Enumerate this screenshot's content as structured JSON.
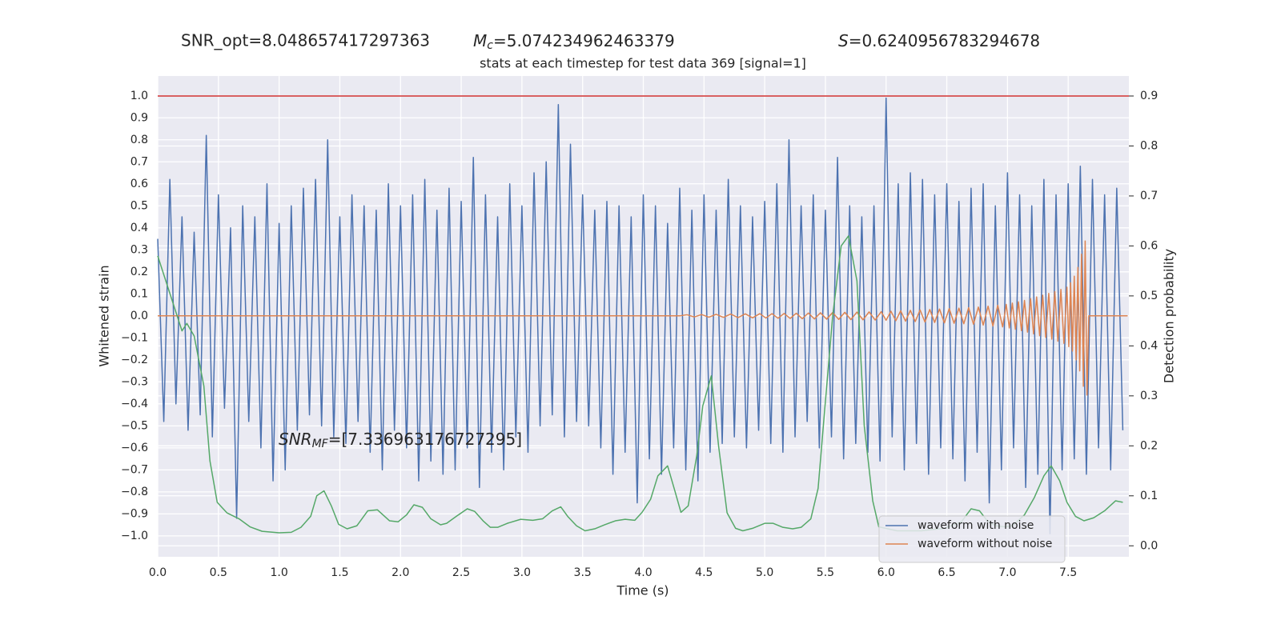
{
  "chart_data": {
    "type": "line",
    "title": "stats at each timestep for test data 369 [signal=1]",
    "annotations": [
      {
        "text": "SNR_opt=8.048657417297363"
      },
      {
        "symbol": "M",
        "subscript": "c",
        "text": "=5.074234962463379"
      },
      {
        "symbol": "S",
        "text": "=0.6240956783294678"
      },
      {
        "symbol": "SNR",
        "subscript": "MF",
        "text": "=[7.336963176727295]"
      }
    ],
    "x_label": "Time (s)",
    "y_label": "Whitened strain",
    "y2_label": "Detection probability",
    "xlim": [
      0,
      8
    ],
    "ylim": [
      -1.095,
      1.09
    ],
    "y2lim": [
      -0.022,
      0.94
    ],
    "xticks": [
      {
        "value": 0,
        "label": "0.0"
      },
      {
        "value": 0.5,
        "label": "0.5"
      },
      {
        "value": 1,
        "label": "1.0"
      },
      {
        "value": 1.5,
        "label": "1.5"
      },
      {
        "value": 2,
        "label": "2.0"
      },
      {
        "value": 2.5,
        "label": "2.5"
      },
      {
        "value": 3,
        "label": "3.0"
      },
      {
        "value": 3.5,
        "label": "3.5"
      },
      {
        "value": 4,
        "label": "4.0"
      },
      {
        "value": 4.5,
        "label": "4.5"
      },
      {
        "value": 5,
        "label": "5.0"
      },
      {
        "value": 5.5,
        "label": "5.5"
      },
      {
        "value": 6,
        "label": "6.0"
      },
      {
        "value": 6.5,
        "label": "6.5"
      },
      {
        "value": 7,
        "label": "7.0"
      },
      {
        "value": 7.5,
        "label": "7.5"
      }
    ],
    "yticks": [
      {
        "value": -1,
        "label": "−1.0"
      },
      {
        "value": -0.9,
        "label": "−0.9"
      },
      {
        "value": -0.8,
        "label": "−0.8"
      },
      {
        "value": -0.7,
        "label": "−0.7"
      },
      {
        "value": -0.6,
        "label": "−0.6"
      },
      {
        "value": -0.5,
        "label": "−0.5"
      },
      {
        "value": -0.4,
        "label": "−0.4"
      },
      {
        "value": -0.3,
        "label": "−0.3"
      },
      {
        "value": -0.2,
        "label": "−0.2"
      },
      {
        "value": -0.1,
        "label": "−0.1"
      },
      {
        "value": 0,
        "label": "0.0"
      },
      {
        "value": 0.1,
        "label": "0.1"
      },
      {
        "value": 0.2,
        "label": "0.2"
      },
      {
        "value": 0.3,
        "label": "0.3"
      },
      {
        "value": 0.4,
        "label": "0.4"
      },
      {
        "value": 0.5,
        "label": "0.5"
      },
      {
        "value": 0.6,
        "label": "0.6"
      },
      {
        "value": 0.7,
        "label": "0.7"
      },
      {
        "value": 0.8,
        "label": "0.8"
      },
      {
        "value": 0.9,
        "label": "0.9"
      },
      {
        "value": 1,
        "label": "1.0"
      }
    ],
    "y2ticks": [
      {
        "value": 0,
        "label": "0.0"
      },
      {
        "value": 0.1,
        "label": "0.1"
      },
      {
        "value": 0.2,
        "label": "0.2"
      },
      {
        "value": 0.3,
        "label": "0.3"
      },
      {
        "value": 0.4,
        "label": "0.4"
      },
      {
        "value": 0.5,
        "label": "0.5"
      },
      {
        "value": 0.6,
        "label": "0.6"
      },
      {
        "value": 0.7,
        "label": "0.7"
      },
      {
        "value": 0.8,
        "label": "0.8"
      },
      {
        "value": 0.9,
        "label": "0.9"
      }
    ],
    "grid": true,
    "legend": "lower right",
    "hlines": [
      {
        "value": 0.9,
        "axis": "y2",
        "color": "#d03030"
      }
    ],
    "series": [
      {
        "name": "waveform with noise",
        "color": "#4c72b0",
        "x": [
          0,
          0.05,
          0.1,
          0.15,
          0.2,
          0.25,
          0.3,
          0.35,
          0.4,
          0.45,
          0.5,
          0.55,
          0.6,
          0.65,
          0.7,
          0.75,
          0.8,
          0.85,
          0.9,
          0.95,
          1,
          1.05,
          1.1,
          1.15,
          1.2,
          1.25,
          1.3,
          1.35,
          1.4,
          1.45,
          1.5,
          1.55,
          1.6,
          1.65,
          1.7,
          1.75,
          1.8,
          1.85,
          1.9,
          1.95,
          2,
          2.05,
          2.1,
          2.15,
          2.2,
          2.25,
          2.3,
          2.35,
          2.4,
          2.45,
          2.5,
          2.55,
          2.6,
          2.65,
          2.7,
          2.75,
          2.8,
          2.85,
          2.9,
          2.95,
          3,
          3.05,
          3.1,
          3.15,
          3.2,
          3.25,
          3.3,
          3.35,
          3.4,
          3.45,
          3.5,
          3.55,
          3.6,
          3.65,
          3.7,
          3.75,
          3.8,
          3.85,
          3.9,
          3.95,
          4,
          4.05,
          4.1,
          4.15,
          4.2,
          4.25,
          4.3,
          4.35,
          4.4,
          4.45,
          4.5,
          4.55,
          4.6,
          4.65,
          4.7,
          4.75,
          4.8,
          4.85,
          4.9,
          4.95,
          5,
          5.05,
          5.1,
          5.15,
          5.2,
          5.25,
          5.3,
          5.35,
          5.4,
          5.45,
          5.5,
          5.55,
          5.6,
          5.65,
          5.7,
          5.75,
          5.8,
          5.85,
          5.9,
          5.95,
          6,
          6.05,
          6.1,
          6.15,
          6.2,
          6.25,
          6.3,
          6.35,
          6.4,
          6.45,
          6.5,
          6.55,
          6.6,
          6.65,
          6.7,
          6.75,
          6.8,
          6.85,
          6.9,
          6.95,
          7,
          7.05,
          7.1,
          7.15,
          7.2,
          7.25,
          7.3,
          7.35,
          7.4,
          7.45,
          7.5,
          7.55,
          7.6,
          7.65,
          7.7,
          7.75,
          7.8,
          7.85,
          7.9,
          7.95
        ],
        "values": [
          0.35,
          -0.48,
          0.62,
          -0.4,
          0.45,
          -0.52,
          0.38,
          -0.45,
          0.82,
          -0.55,
          0.55,
          -0.42,
          0.4,
          -0.92,
          0.5,
          -0.48,
          0.45,
          -0.6,
          0.6,
          -0.75,
          0.42,
          -0.7,
          0.5,
          -0.52,
          0.58,
          -0.45,
          0.62,
          -0.5,
          0.8,
          -0.55,
          0.45,
          -0.58,
          0.55,
          -0.48,
          0.5,
          -0.62,
          0.48,
          -0.7,
          0.6,
          -0.52,
          0.5,
          -0.6,
          0.55,
          -0.75,
          0.62,
          -0.66,
          0.48,
          -0.72,
          0.58,
          -0.7,
          0.52,
          -0.6,
          0.72,
          -0.78,
          0.55,
          -0.62,
          0.45,
          -0.7,
          0.6,
          -0.55,
          0.5,
          -0.62,
          0.65,
          -0.5,
          0.7,
          -0.45,
          0.96,
          -0.55,
          0.78,
          -0.48,
          0.55,
          -0.5,
          0.48,
          -0.6,
          0.52,
          -0.72,
          0.5,
          -0.62,
          0.45,
          -0.85,
          0.55,
          -0.65,
          0.5,
          -0.72,
          0.42,
          -0.6,
          0.58,
          -0.7,
          0.48,
          -0.75,
          0.55,
          -0.62,
          0.48,
          -0.58,
          0.62,
          -0.55,
          0.5,
          -0.6,
          0.45,
          -0.52,
          0.52,
          -0.58,
          0.6,
          -0.62,
          0.8,
          -0.55,
          0.5,
          -0.48,
          0.55,
          -0.6,
          0.48,
          -0.55,
          0.72,
          -0.65,
          0.5,
          -0.58,
          0.45,
          -0.62,
          0.5,
          -0.66,
          0.99,
          -0.55,
          0.6,
          -0.7,
          0.65,
          -0.58,
          0.62,
          -0.72,
          0.55,
          -0.6,
          0.6,
          -0.65,
          0.52,
          -0.75,
          0.58,
          -0.62,
          0.6,
          -0.85,
          0.5,
          -0.7,
          0.65,
          -0.6,
          0.55,
          -0.78,
          0.5,
          -0.72,
          0.62,
          -0.99,
          0.55,
          -0.7,
          0.6,
          -0.65,
          0.68,
          -0.72,
          0.62,
          -0.6,
          0.55,
          -0.7,
          0.58,
          -0.52
        ]
      },
      {
        "name": "waveform without noise",
        "color": "#dd8452",
        "x": [
          0,
          4.3,
          4.36,
          4.42,
          4.48,
          4.54,
          4.6,
          4.66,
          4.72,
          4.78,
          4.84,
          4.9,
          4.96,
          5.01,
          5.06,
          5.11,
          5.16,
          5.21,
          5.26,
          5.31,
          5.36,
          5.41,
          5.46,
          5.51,
          5.56,
          5.61,
          5.66,
          5.71,
          5.76,
          5.81,
          5.86,
          5.91,
          5.96,
          6,
          6.04,
          6.08,
          6.12,
          6.16,
          6.2,
          6.24,
          6.28,
          6.32,
          6.36,
          6.4,
          6.44,
          6.48,
          6.52,
          6.56,
          6.6,
          6.64,
          6.68,
          6.72,
          6.76,
          6.8,
          6.84,
          6.88,
          6.92,
          6.96,
          6.99,
          7.015,
          7.04,
          7.065,
          7.09,
          7.115,
          7.14,
          7.165,
          7.19,
          7.215,
          7.24,
          7.265,
          7.29,
          7.315,
          7.34,
          7.365,
          7.39,
          7.415,
          7.44,
          7.465,
          7.49,
          7.505,
          7.52,
          7.535,
          7.55,
          7.565,
          7.58,
          7.595,
          7.61,
          7.625,
          7.64,
          7.655,
          7.67,
          7.99
        ],
        "values": [
          0,
          0,
          0.005,
          -0.005,
          0.006,
          -0.006,
          0.007,
          -0.007,
          0.008,
          -0.008,
          0.009,
          -0.009,
          0.01,
          -0.01,
          0.01,
          -0.011,
          0.011,
          -0.012,
          0.012,
          -0.013,
          0.013,
          -0.014,
          0.014,
          -0.015,
          0.015,
          -0.016,
          0.016,
          -0.017,
          0.017,
          -0.018,
          0.018,
          -0.019,
          0.019,
          -0.02,
          0.021,
          -0.022,
          0.023,
          -0.024,
          0.025,
          -0.026,
          0.027,
          -0.028,
          0.029,
          -0.03,
          0.031,
          -0.032,
          0.033,
          -0.034,
          0.035,
          -0.036,
          0.037,
          -0.038,
          0.04,
          -0.042,
          0.044,
          -0.046,
          0.048,
          -0.05,
          0.052,
          -0.055,
          0.058,
          -0.061,
          0.064,
          -0.067,
          0.07,
          -0.074,
          0.078,
          -0.082,
          0.086,
          -0.09,
          0.094,
          -0.098,
          0.102,
          -0.106,
          0.11,
          -0.115,
          0.12,
          -0.125,
          0.13,
          -0.14,
          0.15,
          -0.16,
          0.18,
          -0.2,
          0.22,
          -0.25,
          0.28,
          -0.32,
          0.34,
          -0.36,
          0,
          0
        ]
      },
      {
        "color": "#55a868",
        "axis": "y2",
        "x": [
          0,
          0.2,
          0.24,
          0.3,
          0.38,
          0.43,
          0.49,
          0.57,
          0.67,
          0.76,
          0.86,
          1,
          1.1,
          1.18,
          1.26,
          1.31,
          1.37,
          1.43,
          1.49,
          1.56,
          1.64,
          1.73,
          1.81,
          1.91,
          1.98,
          2.05,
          2.11,
          2.18,
          2.25,
          2.33,
          2.38,
          2.46,
          2.55,
          2.61,
          2.68,
          2.74,
          2.8,
          2.88,
          2.99,
          3.09,
          3.17,
          3.25,
          3.32,
          3.38,
          3.45,
          3.52,
          3.6,
          3.68,
          3.77,
          3.85,
          3.93,
          3.99,
          4.06,
          4.12,
          4.2,
          4.26,
          4.31,
          4.37,
          4.44,
          4.49,
          4.56,
          4.62,
          4.69,
          4.76,
          4.82,
          4.9,
          5,
          5.07,
          5.15,
          5.23,
          5.3,
          5.38,
          5.44,
          5.49,
          5.56,
          5.63,
          5.69,
          5.76,
          5.82,
          5.89,
          5.94,
          6.09,
          6.29,
          6.48,
          6.62,
          6.7,
          6.77,
          6.83,
          6.9,
          6.98,
          7.04,
          7.14,
          7.22,
          7.3,
          7.36,
          7.43,
          7.49,
          7.56,
          7.63,
          7.71,
          7.8,
          7.89,
          7.95
        ],
        "values": [
          0.58,
          0.43,
          0.445,
          0.42,
          0.32,
          0.17,
          0.087,
          0.066,
          0.054,
          0.038,
          0.029,
          0.026,
          0.027,
          0.037,
          0.059,
          0.1,
          0.11,
          0.08,
          0.043,
          0.034,
          0.04,
          0.07,
          0.072,
          0.05,
          0.048,
          0.062,
          0.082,
          0.077,
          0.054,
          0.042,
          0.045,
          0.059,
          0.074,
          0.069,
          0.05,
          0.037,
          0.037,
          0.045,
          0.053,
          0.051,
          0.054,
          0.07,
          0.078,
          0.058,
          0.04,
          0.03,
          0.034,
          0.042,
          0.05,
          0.053,
          0.051,
          0.067,
          0.093,
          0.14,
          0.16,
          0.11,
          0.067,
          0.08,
          0.18,
          0.28,
          0.34,
          0.2,
          0.066,
          0.035,
          0.03,
          0.035,
          0.045,
          0.045,
          0.037,
          0.034,
          0.037,
          0.054,
          0.115,
          0.26,
          0.46,
          0.6,
          0.62,
          0.53,
          0.24,
          0.09,
          0.038,
          0.03,
          0.03,
          0.035,
          0.048,
          0.074,
          0.07,
          0.051,
          0.04,
          0.038,
          0.04,
          0.062,
          0.096,
          0.14,
          0.16,
          0.13,
          0.087,
          0.059,
          0.05,
          0.056,
          0.07,
          0.09,
          0.087
        ]
      }
    ]
  }
}
